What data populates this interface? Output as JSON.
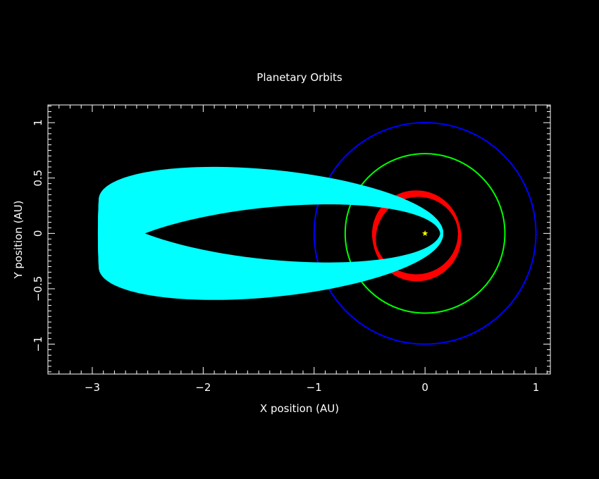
{
  "chart_data": {
    "type": "line",
    "title": "Planetary Orbits",
    "xlabel": "X position (AU)",
    "ylabel": "Y position (AU)",
    "xlim": [
      -3.4,
      1.13
    ],
    "ylim": [
      -1.27,
      1.16
    ],
    "x_ticks": [
      -3,
      -2,
      -1,
      0,
      1
    ],
    "x_tick_labels": [
      "−3",
      "−2",
      "−1",
      "0",
      "1"
    ],
    "y_ticks": [
      -1,
      -0.5,
      0,
      0.5,
      1
    ],
    "y_tick_labels": [
      "−1",
      "−0.5",
      "0",
      "0.5",
      "1"
    ],
    "background": "#000000",
    "grid": false,
    "star": {
      "x": 0,
      "y": 0,
      "color": "#ffff00"
    },
    "series": [
      {
        "color": "#0000ff",
        "kind": "circle",
        "cx": 0,
        "cy": 0,
        "r": 1.0
      },
      {
        "color": "#00ff00",
        "kind": "circle",
        "cx": 0,
        "cy": 0,
        "r": 0.72
      },
      {
        "color": "#ff0000",
        "kind": "band",
        "a": 0.387,
        "e": 0.206,
        "omega_start": 0,
        "omega_end": 0.55,
        "perihelion": [
          0.31,
          0.0
        ]
      },
      {
        "color": "#00ffff",
        "kind": "band",
        "a": 1.55,
        "e": 0.9,
        "omega_start": 3.05,
        "omega_end": 3.3,
        "perihelion": [
          0.155,
          0.0
        ],
        "aphelion": [
          -2.94,
          0.0
        ]
      }
    ]
  }
}
